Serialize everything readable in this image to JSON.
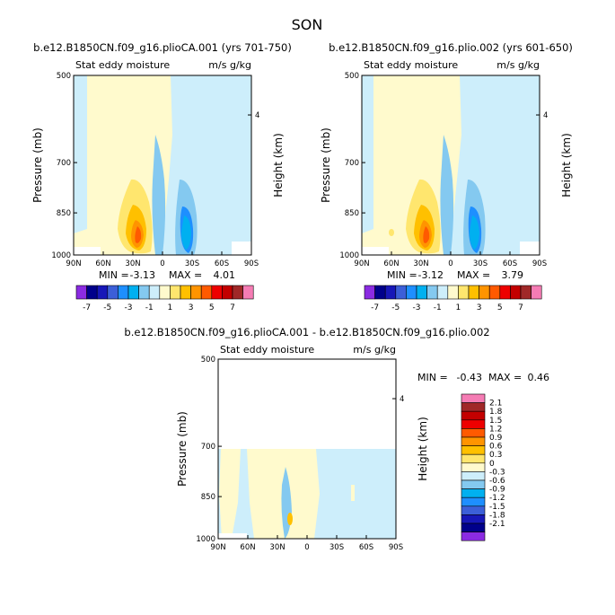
{
  "figure": {
    "title": "SON"
  },
  "chart_data": [
    {
      "type": "contour",
      "title": "b.e12.B1850CN.f09_g16.plioCA.001 (yrs 701-750)",
      "left_subtitle": "Stat eddy moisture",
      "right_subtitle": "m/s g/kg",
      "xlabel": "",
      "ylabel": "Pressure (mb)",
      "y2label": "Height (km)",
      "x_ticks": [
        "90N",
        "60N",
        "30N",
        "0",
        "30S",
        "60S",
        "90S"
      ],
      "x_range": [
        90,
        -90
      ],
      "y_ticks": [
        "500",
        "700",
        "850",
        "1000"
      ],
      "y_range_mb": [
        500,
        1000
      ],
      "y2_ticks": [
        "4"
      ],
      "min_label": "MIN =",
      "min_value": "-3.13",
      "max_label": "MAX =",
      "max_value": "4.01"
    },
    {
      "type": "contour",
      "title": "b.e12.B1850CN.f09_g16.plio.002 (yrs 601-650)",
      "left_subtitle": "Stat eddy moisture",
      "right_subtitle": "m/s g/kg",
      "xlabel": "",
      "ylabel": "Pressure (mb)",
      "y2label": "Height (km)",
      "x_ticks": [
        "90N",
        "60N",
        "30N",
        "0",
        "30S",
        "60S",
        "90S"
      ],
      "x_range": [
        90,
        -90
      ],
      "y_ticks": [
        "500",
        "700",
        "850",
        "1000"
      ],
      "y_range_mb": [
        500,
        1000
      ],
      "y2_ticks": [
        "4"
      ],
      "min_label": "MIN =",
      "min_value": "-3.12",
      "max_label": "MAX =",
      "max_value": "3.79"
    },
    {
      "type": "contour",
      "title": "b.e12.B1850CN.f09_g16.plioCA.001 - b.e12.B1850CN.f09_g16.plio.002",
      "left_subtitle": "Stat eddy moisture",
      "right_subtitle": "m/s g/kg",
      "xlabel": "",
      "ylabel": "Pressure (mb)",
      "y2label": "Height (km)",
      "x_ticks": [
        "90N",
        "60N",
        "30N",
        "0",
        "30S",
        "60S",
        "90S"
      ],
      "x_range": [
        90,
        -90
      ],
      "y_ticks": [
        "500",
        "700",
        "850",
        "1000"
      ],
      "y_range_mb": [
        500,
        1000
      ],
      "y2_ticks": [
        "4"
      ],
      "min_label": "MIN =",
      "min_value": "-0.43",
      "max_label": "MAX =",
      "max_value": "0.46"
    }
  ],
  "colorbar_top": {
    "colors": [
      "#8b2be2",
      "#00008b",
      "#1717b8",
      "#3c5fd8",
      "#1e8fff",
      "#00b0f0",
      "#84c9f0",
      "#cdeefb",
      "#fffacd",
      "#ffe66e",
      "#ffc000",
      "#ff9400",
      "#ff5a00",
      "#ee0000",
      "#c30000",
      "#a02828",
      "#f57cb4"
    ],
    "labels": [
      "-7",
      "-5",
      "-3",
      "-1",
      "1",
      "3",
      "5",
      "7"
    ]
  },
  "colorbar_diff": {
    "colors": [
      "#8b2be2",
      "#00008b",
      "#1717b8",
      "#3c5fd8",
      "#1e8fff",
      "#00b0f0",
      "#84c9f0",
      "#cdeefb",
      "#fffacd",
      "#ffe66e",
      "#ffc000",
      "#ff9400",
      "#ff5a00",
      "#ee0000",
      "#c30000",
      "#a02828",
      "#f57cb4"
    ],
    "labels": [
      "-2.1",
      "-1.8",
      "-1.5",
      "-1.2",
      "-0.9",
      "-0.6",
      "-0.3",
      "0",
      "0.3",
      "0.6",
      "0.9",
      "1.2",
      "1.5",
      "1.8",
      "2.1"
    ]
  }
}
